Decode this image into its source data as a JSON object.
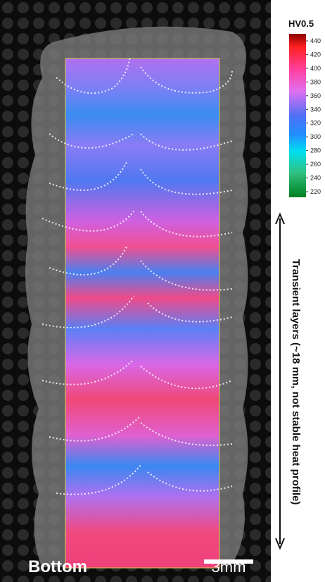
{
  "colorbar": {
    "title": "HV0.5",
    "ticks": [
      440,
      420,
      400,
      380,
      360,
      340,
      320,
      300,
      280,
      260,
      240,
      220
    ]
  },
  "annotations": {
    "side_label": "Transient layers (~18 mm, not stable heat profile)",
    "corner_label": "Bottom",
    "scale_bar": "3mm"
  }
}
